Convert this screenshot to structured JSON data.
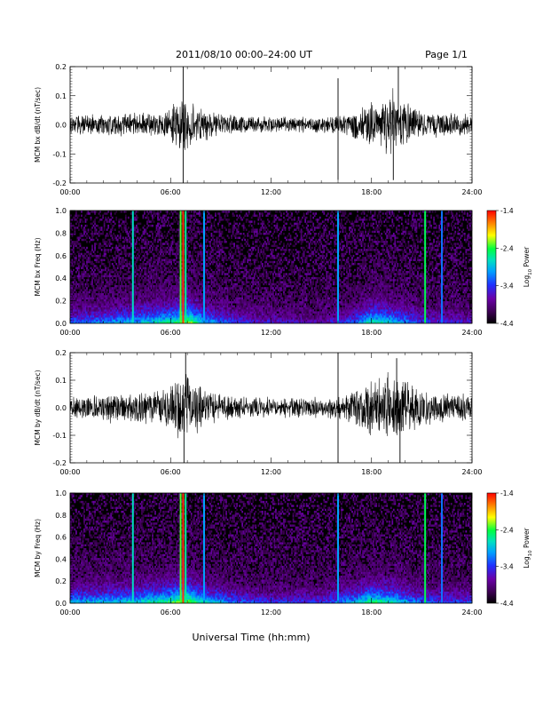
{
  "page": {
    "title": "2011/08/10   00:00–24:00 UT",
    "page_label": "Page 1/1",
    "xlabel": "Universal Time (hh:mm)"
  },
  "colors": {
    "spectrogram_background": "#000000",
    "trace": "#000000",
    "colormap": [
      "#000000",
      "#3b0050",
      "#6a00a8",
      "#2030ff",
      "#00a0ff",
      "#00e0c0",
      "#00ff40",
      "#ffff00",
      "#ff8000",
      "#ff0000"
    ]
  },
  "chart_data": [
    {
      "type": "line",
      "name": "bx-dbdt",
      "ylabel": "MCM bx dB/dt (nT/sec)",
      "xlim": [
        0,
        24
      ],
      "ylim": [
        -0.2,
        0.2
      ],
      "x_ticks": [
        "00:00",
        "06:00",
        "12:00",
        "18:00",
        "24:00"
      ],
      "y_ticks": [
        "-0.2",
        "-0.1",
        "0.0",
        "0.1",
        "0.2"
      ],
      "y_tick_values": [
        -0.2,
        -0.1,
        0.0,
        0.1,
        0.2
      ],
      "envelope": [
        {
          "x": 0,
          "amp": 0.035
        },
        {
          "x": 2,
          "amp": 0.04
        },
        {
          "x": 4,
          "amp": 0.045
        },
        {
          "x": 5.5,
          "amp": 0.05
        },
        {
          "x": 6.5,
          "amp": 0.09
        },
        {
          "x": 7,
          "amp": 0.12
        },
        {
          "x": 7.5,
          "amp": 0.07
        },
        {
          "x": 9,
          "amp": 0.04
        },
        {
          "x": 12,
          "amp": 0.03
        },
        {
          "x": 15,
          "amp": 0.03
        },
        {
          "x": 16.5,
          "amp": 0.04
        },
        {
          "x": 17.5,
          "amp": 0.07
        },
        {
          "x": 19,
          "amp": 0.11
        },
        {
          "x": 20,
          "amp": 0.09
        },
        {
          "x": 21,
          "amp": 0.05
        },
        {
          "x": 24,
          "amp": 0.04
        }
      ],
      "spikes": [
        {
          "x": 6.75,
          "y": 0.2
        },
        {
          "x": 6.75,
          "y": -0.2
        },
        {
          "x": 16.0,
          "y": 0.16
        },
        {
          "x": 16.0,
          "y": -0.19
        },
        {
          "x": 19.6,
          "y": 0.2
        },
        {
          "x": 19.3,
          "y": -0.19
        }
      ]
    },
    {
      "type": "heatmap",
      "name": "bx-spectrogram",
      "ylabel": "MCM bx Freq (Hz)",
      "xlim": [
        0,
        24
      ],
      "ylim": [
        0.0,
        1.0
      ],
      "x_ticks": [
        "00:00",
        "06:00",
        "12:00",
        "18:00",
        "24:00"
      ],
      "y_ticks": [
        "0.0",
        "0.2",
        "0.4",
        "0.6",
        "0.8",
        "1.0"
      ],
      "y_tick_values": [
        0.0,
        0.2,
        0.4,
        0.6,
        0.8,
        1.0
      ],
      "colorbar": {
        "label": "Log10 Power",
        "ticks": [
          "-1.4",
          "-2.4",
          "-3.4",
          "-4.4"
        ],
        "range": [
          -4.4,
          -1.4
        ]
      },
      "vertical_lines": [
        {
          "x": 3.75,
          "level": 0.55
        },
        {
          "x": 6.6,
          "level": 0.7
        },
        {
          "x": 6.75,
          "level": 0.95
        },
        {
          "x": 6.9,
          "level": 0.6
        },
        {
          "x": 8.0,
          "level": 0.45
        },
        {
          "x": 16.0,
          "level": 0.45
        },
        {
          "x": 21.2,
          "level": 0.65
        },
        {
          "x": 22.2,
          "level": 0.4
        }
      ],
      "activity": [
        {
          "x": 0,
          "act": 0.35
        },
        {
          "x": 2,
          "act": 0.4
        },
        {
          "x": 4,
          "act": 0.45
        },
        {
          "x": 6,
          "act": 0.55
        },
        {
          "x": 7,
          "act": 0.7
        },
        {
          "x": 8,
          "act": 0.45
        },
        {
          "x": 10,
          "act": 0.3
        },
        {
          "x": 12,
          "act": 0.25
        },
        {
          "x": 15,
          "act": 0.2
        },
        {
          "x": 17,
          "act": 0.35
        },
        {
          "x": 18,
          "act": 0.55
        },
        {
          "x": 19,
          "act": 0.5
        },
        {
          "x": 21,
          "act": 0.3
        },
        {
          "x": 24,
          "act": 0.25
        }
      ]
    },
    {
      "type": "line",
      "name": "by-dbdt",
      "ylabel": "MCM by dB/dt (nT/sec)",
      "xlim": [
        0,
        24
      ],
      "ylim": [
        -0.2,
        0.2
      ],
      "x_ticks": [
        "00:00",
        "06:00",
        "12:00",
        "18:00",
        "24:00"
      ],
      "y_ticks": [
        "-0.2",
        "-0.1",
        "0.0",
        "0.1",
        "0.2"
      ],
      "y_tick_values": [
        -0.2,
        -0.1,
        0.0,
        0.1,
        0.2
      ],
      "envelope": [
        {
          "x": 0,
          "amp": 0.04
        },
        {
          "x": 2,
          "amp": 0.05
        },
        {
          "x": 4,
          "amp": 0.06
        },
        {
          "x": 5.5,
          "amp": 0.07
        },
        {
          "x": 6.5,
          "amp": 0.12
        },
        {
          "x": 7,
          "amp": 0.15
        },
        {
          "x": 7.5,
          "amp": 0.09
        },
        {
          "x": 9,
          "amp": 0.05
        },
        {
          "x": 12,
          "amp": 0.04
        },
        {
          "x": 15,
          "amp": 0.04
        },
        {
          "x": 16.5,
          "amp": 0.05
        },
        {
          "x": 17.5,
          "amp": 0.09
        },
        {
          "x": 19,
          "amp": 0.14
        },
        {
          "x": 20,
          "amp": 0.12
        },
        {
          "x": 21,
          "amp": 0.07
        },
        {
          "x": 24,
          "amp": 0.05
        }
      ],
      "spikes": [
        {
          "x": 6.9,
          "y": 0.2
        },
        {
          "x": 6.8,
          "y": -0.2
        },
        {
          "x": 16.0,
          "y": 0.2
        },
        {
          "x": 16.0,
          "y": -0.2
        },
        {
          "x": 19.5,
          "y": 0.18
        },
        {
          "x": 19.7,
          "y": -0.2
        }
      ]
    },
    {
      "type": "heatmap",
      "name": "by-spectrogram",
      "ylabel": "MCM by Freq (Hz)",
      "xlim": [
        0,
        24
      ],
      "ylim": [
        0.0,
        1.0
      ],
      "x_ticks": [
        "00:00",
        "06:00",
        "12:00",
        "18:00",
        "24:00"
      ],
      "y_ticks": [
        "0.0",
        "0.2",
        "0.4",
        "0.6",
        "0.8",
        "1.0"
      ],
      "y_tick_values": [
        0.0,
        0.2,
        0.4,
        0.6,
        0.8,
        1.0
      ],
      "colorbar": {
        "label": "Log10 Power",
        "ticks": [
          "-1.4",
          "-2.4",
          "-3.4",
          "-4.4"
        ],
        "range": [
          -4.4,
          -1.4
        ]
      },
      "vertical_lines": [
        {
          "x": 3.75,
          "level": 0.55
        },
        {
          "x": 6.6,
          "level": 0.7
        },
        {
          "x": 6.75,
          "level": 0.95
        },
        {
          "x": 6.9,
          "level": 0.6
        },
        {
          "x": 8.0,
          "level": 0.45
        },
        {
          "x": 16.0,
          "level": 0.45
        },
        {
          "x": 21.2,
          "level": 0.65
        },
        {
          "x": 22.2,
          "level": 0.4
        }
      ],
      "activity": [
        {
          "x": 0,
          "act": 0.45
        },
        {
          "x": 2,
          "act": 0.45
        },
        {
          "x": 4,
          "act": 0.5
        },
        {
          "x": 6,
          "act": 0.6
        },
        {
          "x": 7,
          "act": 0.7
        },
        {
          "x": 8,
          "act": 0.5
        },
        {
          "x": 10,
          "act": 0.35
        },
        {
          "x": 12,
          "act": 0.3
        },
        {
          "x": 15,
          "act": 0.3
        },
        {
          "x": 17,
          "act": 0.45
        },
        {
          "x": 18,
          "act": 0.6
        },
        {
          "x": 19,
          "act": 0.55
        },
        {
          "x": 21,
          "act": 0.35
        },
        {
          "x": 24,
          "act": 0.3
        }
      ]
    }
  ]
}
